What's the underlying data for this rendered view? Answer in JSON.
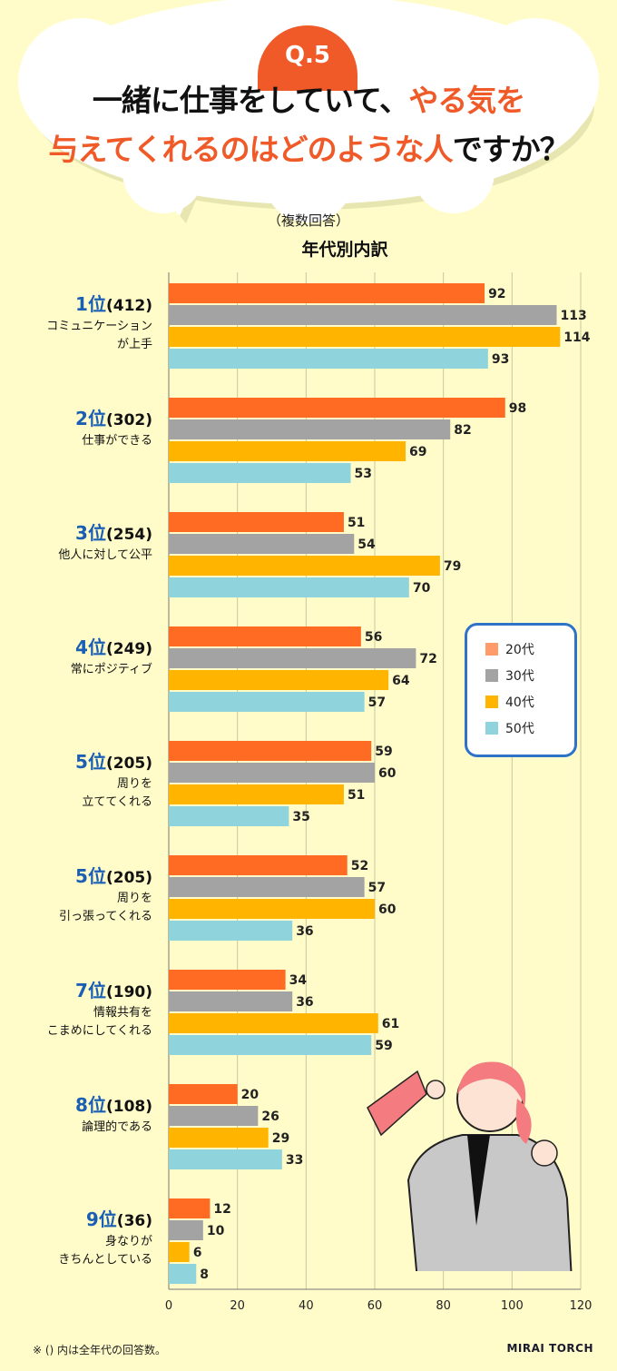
{
  "header": {
    "q_badge": "Q.5",
    "line1_black": "一緒に仕事をしていて、",
    "line1_orange": "やる気を",
    "line2_orange": "与えてくれるのはどのような人",
    "line2_black": "ですか？",
    "subtitle": "（複数回答）"
  },
  "footnote": "※ () 内は全年代の回答数。",
  "logo": "MIRAI TORCH",
  "chart_data": {
    "type": "bar",
    "orientation": "horizontal",
    "title": "年代別内訳",
    "categories": [
      {
        "rank": "1位",
        "total": "(412)",
        "label": "コミュニケーション\nが上手"
      },
      {
        "rank": "2位",
        "total": "(302)",
        "label": "仕事ができる"
      },
      {
        "rank": "3位",
        "total": "(254)",
        "label": "他人に対して公平"
      },
      {
        "rank": "4位",
        "total": "(249)",
        "label": "常にポジティブ"
      },
      {
        "rank": "5位",
        "total": "(205)",
        "label": "周りを\n立ててくれる"
      },
      {
        "rank": "5位",
        "total": "(205)",
        "label": "周りを\n引っ張ってくれる"
      },
      {
        "rank": "7位",
        "total": "(190)",
        "label": "情報共有を\nこまめにしてくれる"
      },
      {
        "rank": "8位",
        "total": "(108)",
        "label": "論理的である"
      },
      {
        "rank": "9位",
        "total": "(36)",
        "label": "身なりが\nきちんとしている"
      }
    ],
    "series": [
      {
        "name": "20代",
        "color": "#ff6b22",
        "values": [
          92,
          98,
          51,
          56,
          59,
          52,
          34,
          20,
          12
        ]
      },
      {
        "name": "30代",
        "color": "#a3a3a3",
        "values": [
          113,
          82,
          54,
          72,
          60,
          57,
          36,
          26,
          10
        ]
      },
      {
        "name": "40代",
        "color": "#ffb400",
        "values": [
          114,
          69,
          79,
          64,
          51,
          60,
          61,
          29,
          6
        ]
      },
      {
        "name": "50代",
        "color": "#8fd3dc",
        "values": [
          93,
          53,
          70,
          57,
          35,
          36,
          59,
          33,
          8
        ]
      }
    ],
    "xlim": [
      0,
      120
    ],
    "xticks": [
      "0",
      "20",
      "40",
      "60",
      "80",
      "100",
      "120"
    ],
    "grid": true,
    "legend": "right-middle"
  }
}
